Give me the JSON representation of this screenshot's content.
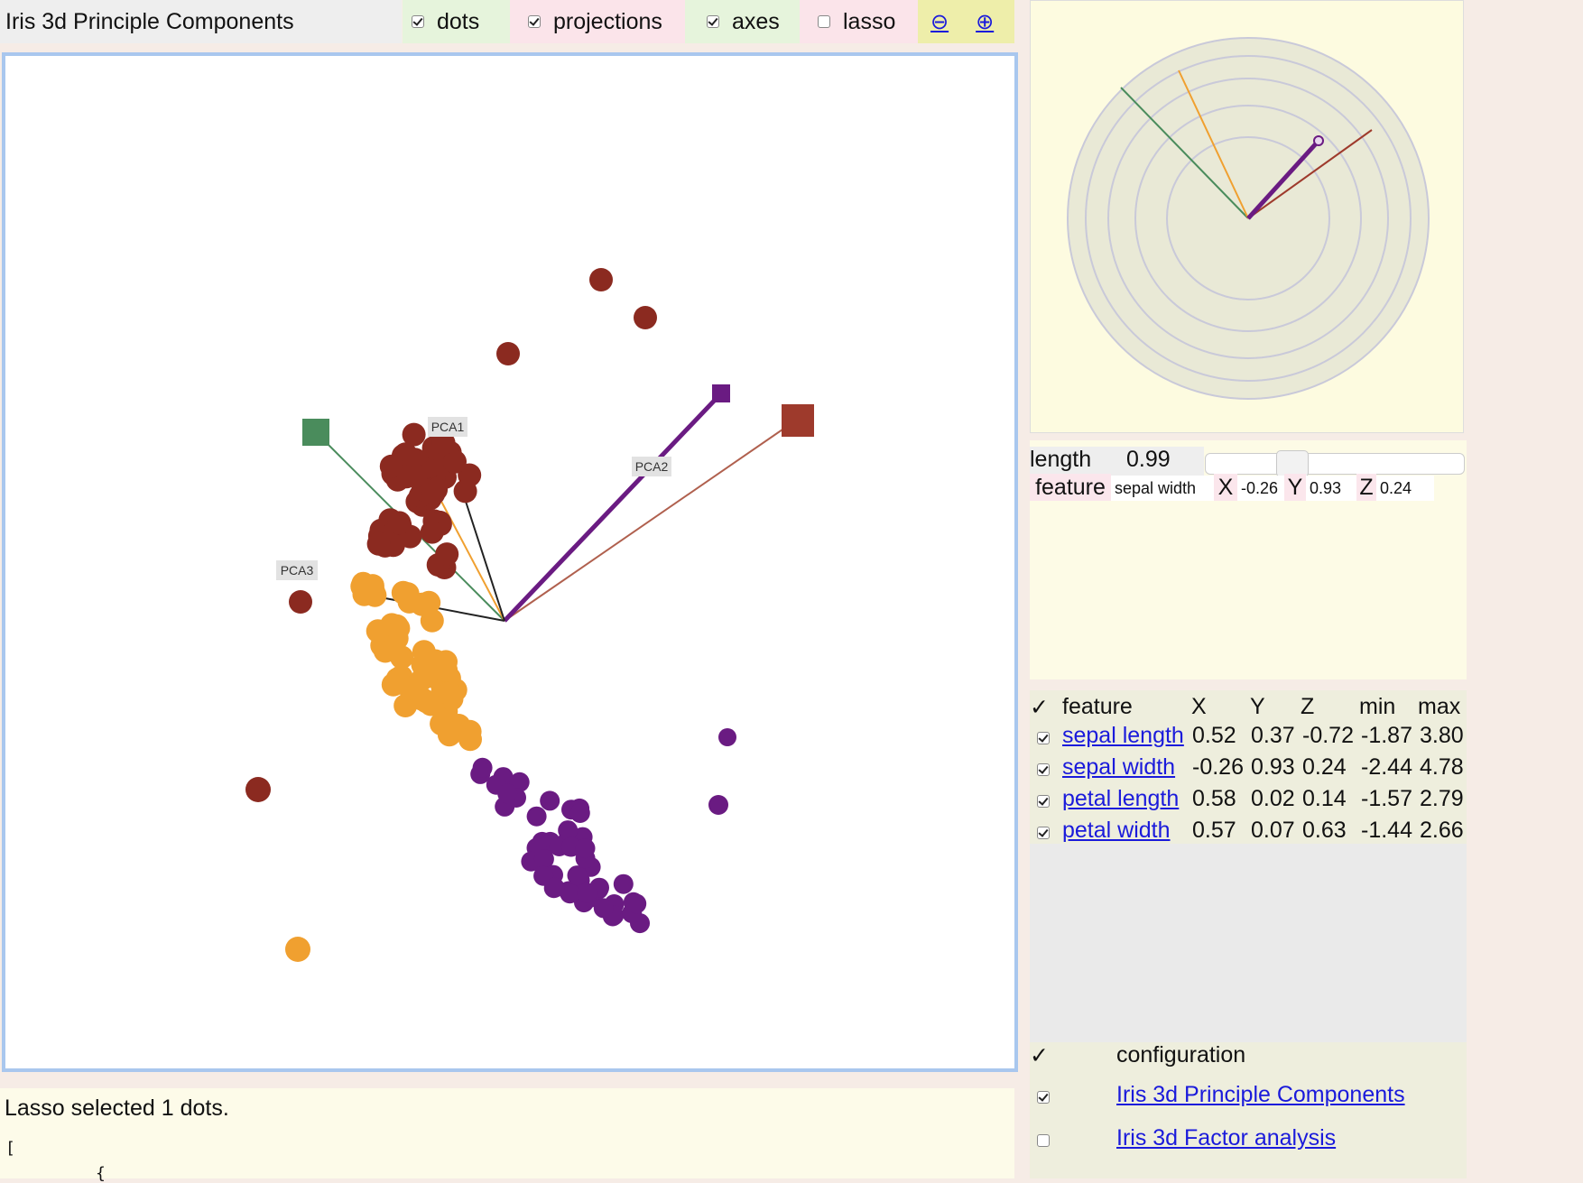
{
  "toolbar": {
    "title": "Iris 3d Principle Components",
    "dots_label": "dots",
    "projections_label": "projections",
    "axes_label": "axes",
    "lasso_label": "lasso",
    "zoom_out_glyph": "⊖",
    "zoom_in_glyph": "⊕",
    "dots_checked": true,
    "projections_checked": true,
    "axes_checked": true,
    "lasso_checked": false
  },
  "plot": {
    "axis_labels": [
      "PCA1",
      "PCA2",
      "PCA3"
    ],
    "colors": {
      "setosa": "#8b2a20",
      "versicolor": "#f0a030",
      "virginica": "#6a1b82",
      "sepal_length": "#9e3a2c",
      "sepal_width": "#4a8c5c",
      "petal_length": "#f0a030",
      "petal_width": "#6a1b82"
    }
  },
  "status": {
    "message": "Lasso selected 1 dots.",
    "json_line1": "[",
    "json_line2": "{"
  },
  "editor": {
    "length_label": "length",
    "length_value": "0.99",
    "length_fraction": 0.31,
    "feature_label": "feature",
    "feature_value": "sepal width",
    "x_label": "X",
    "x_value": "-0.26",
    "y_label": "Y",
    "y_value": "0.93",
    "z_label": "Z",
    "z_value": "0.24"
  },
  "feature_table": {
    "headers": [
      "✓",
      "feature",
      "X",
      "Y",
      "Z",
      "min",
      "max"
    ],
    "rows": [
      {
        "checked": true,
        "feature": "sepal length",
        "x": "0.52",
        "y": "0.37",
        "z": "-0.72",
        "min": "-1.87",
        "max": "3.80"
      },
      {
        "checked": true,
        "feature": "sepal width",
        "x": "-0.26",
        "y": "0.93",
        "z": "0.24",
        "min": "-2.44",
        "max": "4.78"
      },
      {
        "checked": true,
        "feature": "petal length",
        "x": "0.58",
        "y": "0.02",
        "z": "0.14",
        "min": "-1.57",
        "max": "2.79"
      },
      {
        "checked": true,
        "feature": "petal width",
        "x": "0.57",
        "y": "0.07",
        "z": "0.63",
        "min": "-1.44",
        "max": "2.66"
      }
    ]
  },
  "config": {
    "header_check": "✓",
    "header_label": "configuration",
    "items": [
      {
        "checked": true,
        "label": "Iris 3d Principle Components"
      },
      {
        "checked": false,
        "label": "Iris 3d Factor analysis"
      }
    ]
  }
}
